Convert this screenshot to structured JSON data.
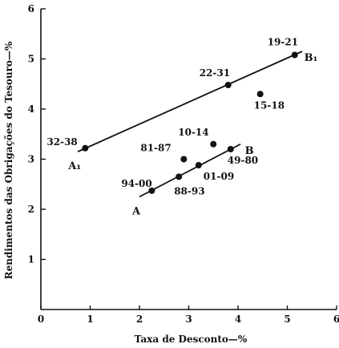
{
  "chart_data": {
    "type": "scatter",
    "xlabel": "Taxa de Desconto—%",
    "ylabel": "Rendimentos das Obrigações do Tesouro—%",
    "xlim": [
      0,
      6
    ],
    "ylim": [
      0,
      6
    ],
    "x_ticks": [
      "0",
      "1",
      "2",
      "3",
      "4",
      "5",
      "6"
    ],
    "y_ticks": [
      "1",
      "2",
      "3",
      "4",
      "5",
      "6"
    ],
    "grid": false,
    "points": [
      {
        "label": "32-38",
        "x": 0.9,
        "y": 3.22
      },
      {
        "label": "22-31",
        "x": 3.8,
        "y": 4.48
      },
      {
        "label": "19-21",
        "x": 5.15,
        "y": 5.08
      },
      {
        "label": "15-18",
        "x": 4.45,
        "y": 4.3
      },
      {
        "label": "10-14",
        "x": 3.5,
        "y": 3.3
      },
      {
        "label": "81-87",
        "x": 2.9,
        "y": 3.0
      },
      {
        "label": "49-80",
        "x": 3.85,
        "y": 3.2
      },
      {
        "label": "01-09",
        "x": 3.2,
        "y": 2.88
      },
      {
        "label": "88-93",
        "x": 2.8,
        "y": 2.65
      },
      {
        "label": "94-00",
        "x": 2.25,
        "y": 2.37
      }
    ],
    "lines": [
      {
        "start_label": "A₁",
        "end_label": "B₁",
        "x1": 0.75,
        "y1": 3.15,
        "x2": 5.3,
        "y2": 5.15
      },
      {
        "start_label": "A",
        "end_label": "B",
        "x1": 2.0,
        "y1": 2.25,
        "x2": 4.05,
        "y2": 3.3
      }
    ]
  }
}
